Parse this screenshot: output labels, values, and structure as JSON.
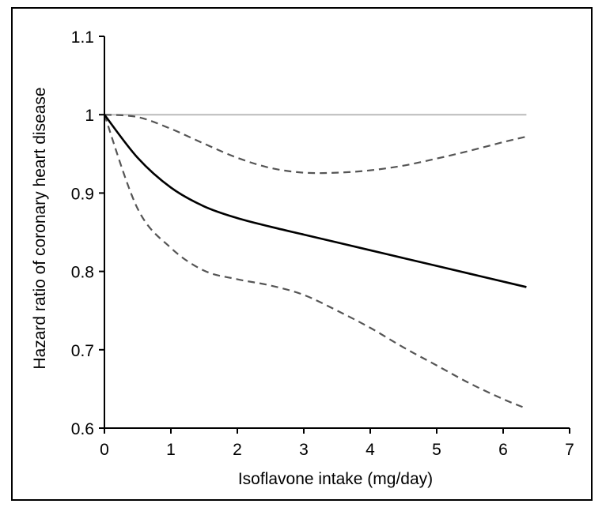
{
  "chart_data": {
    "type": "line",
    "xlabel": "Isoflavone intake (mg/day)",
    "ylabel": "Hazard ratio of coronary heart disease",
    "xlim": [
      0,
      7
    ],
    "ylim": [
      0.6,
      1.1
    ],
    "x_ticks": [
      "0",
      "1",
      "2",
      "3",
      "4",
      "5",
      "6",
      "7"
    ],
    "y_ticks": [
      "0.6",
      "0.7",
      "0.8",
      "0.9",
      "1",
      "1.1"
    ],
    "grid": false,
    "legend": "none",
    "colors": {
      "estimate": "#000000",
      "ci": "#555555",
      "reference": "#bbbbbb",
      "axis": "#000000"
    },
    "series": [
      {
        "role": "estimate",
        "style": "solid",
        "x": [
          0,
          0.5,
          1,
          1.5,
          2,
          2.5,
          3,
          3.5,
          4,
          4.5,
          5,
          5.5,
          6,
          6.35
        ],
        "y": [
          1.0,
          0.945,
          0.907,
          0.883,
          0.868,
          0.857,
          0.847,
          0.837,
          0.827,
          0.817,
          0.807,
          0.797,
          0.787,
          0.78
        ]
      },
      {
        "role": "upper_ci",
        "style": "dashed",
        "x": [
          0,
          0.5,
          1,
          1.5,
          2,
          2.5,
          3,
          3.5,
          4,
          4.5,
          5,
          5.5,
          6,
          6.35
        ],
        "y": [
          1.0,
          0.997,
          0.982,
          0.963,
          0.945,
          0.932,
          0.926,
          0.926,
          0.929,
          0.935,
          0.944,
          0.954,
          0.965,
          0.972
        ]
      },
      {
        "role": "lower_ci",
        "style": "dashed",
        "x": [
          0,
          0.5,
          1,
          1.5,
          2,
          2.5,
          3,
          3.5,
          4,
          4.5,
          5,
          5.5,
          6,
          6.35
        ],
        "y": [
          1.0,
          0.88,
          0.83,
          0.801,
          0.79,
          0.782,
          0.77,
          0.75,
          0.728,
          0.703,
          0.68,
          0.657,
          0.637,
          0.625
        ]
      },
      {
        "role": "reference",
        "style": "solid",
        "x": [
          0,
          6.35
        ],
        "y": [
          1.0,
          1.0
        ]
      }
    ]
  }
}
